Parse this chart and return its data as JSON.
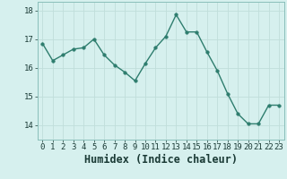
{
  "x": [
    0,
    1,
    2,
    3,
    4,
    5,
    6,
    7,
    8,
    9,
    10,
    11,
    12,
    13,
    14,
    15,
    16,
    17,
    18,
    19,
    20,
    21,
    22,
    23
  ],
  "y": [
    16.85,
    16.25,
    16.45,
    16.65,
    16.7,
    17.0,
    16.45,
    16.1,
    15.85,
    15.55,
    16.15,
    16.7,
    17.1,
    17.85,
    17.25,
    17.25,
    16.55,
    15.9,
    15.1,
    14.4,
    14.05,
    14.05,
    14.7,
    14.7
  ],
  "xlabel": "Humidex (Indice chaleur)",
  "ylim": [
    13.5,
    18.3
  ],
  "xlim": [
    -0.5,
    23.5
  ],
  "yticks": [
    14,
    15,
    16,
    17,
    18
  ],
  "xticks": [
    0,
    1,
    2,
    3,
    4,
    5,
    6,
    7,
    8,
    9,
    10,
    11,
    12,
    13,
    14,
    15,
    16,
    17,
    18,
    19,
    20,
    21,
    22,
    23
  ],
  "line_color": "#2e7d6e",
  "marker_color": "#2e7d6e",
  "bg_color": "#d6f0ee",
  "grid_color": "#c0deda",
  "tick_fontsize": 6.5,
  "xlabel_fontsize": 8.5
}
